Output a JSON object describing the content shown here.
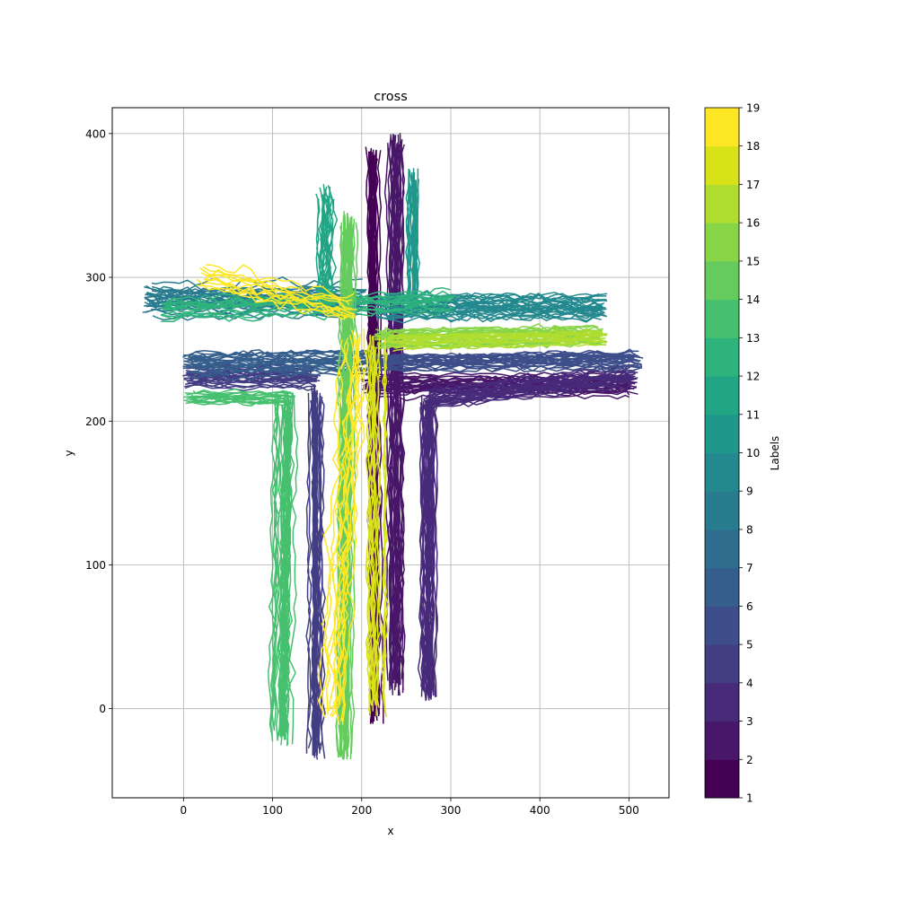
{
  "chart_data": {
    "type": "line",
    "title": "cross",
    "xlabel": "x",
    "ylabel": "y",
    "xlim": [
      -80,
      545
    ],
    "ylim": [
      -62,
      418
    ],
    "x_ticks": [
      0,
      100,
      200,
      300,
      400,
      500
    ],
    "y_ticks": [
      0,
      100,
      200,
      300,
      400
    ],
    "x_tick_labels": [
      "0",
      "100",
      "200",
      "300",
      "400",
      "500"
    ],
    "y_tick_labels": [
      "0",
      "100",
      "200",
      "300",
      "400"
    ],
    "grid": true,
    "colormap": "viridis",
    "colorbar": {
      "label": "Labels",
      "min": 1,
      "max": 19,
      "ticks": [
        1,
        2,
        3,
        4,
        5,
        6,
        7,
        8,
        9,
        10,
        11,
        12,
        13,
        14,
        15,
        16,
        17,
        18,
        19
      ],
      "tick_labels": [
        "1",
        "2",
        "3",
        "4",
        "5",
        "6",
        "7",
        "8",
        "9",
        "10",
        "11",
        "12",
        "13",
        "14",
        "15",
        "16",
        "17",
        "18",
        "19"
      ],
      "colors": [
        "#440154",
        "#481769",
        "#472a7a",
        "#433d84",
        "#3d4e8a",
        "#355e8d",
        "#2e6d8e",
        "#297b8e",
        "#23898e",
        "#1f978b",
        "#21a585",
        "#2eb37c",
        "#46c06f",
        "#65cb5e",
        "#89d548",
        "#b0dd2f",
        "#d8e219",
        "#fde725"
      ]
    },
    "series": [
      {
        "label_value": 1,
        "color": "#440154",
        "segment": [
          [
            215,
            -5
          ],
          [
            212,
            385
          ]
        ],
        "spread": 7,
        "count": 30
      },
      {
        "label_value": 2,
        "color": "#481769",
        "segment": [
          [
            238,
            15
          ],
          [
            238,
            395
          ]
        ],
        "spread": 8,
        "count": 25
      },
      {
        "label_value": 2,
        "color": "#481769",
        "segment": [
          [
            205,
            225
          ],
          [
            505,
            225
          ]
        ],
        "spread": 7,
        "count": 25
      },
      {
        "label_value": 3,
        "color": "#472a7a",
        "segment": [
          [
            275,
            10
          ],
          [
            275,
            215
          ]
        ],
        "spread": 8,
        "count": 30
      },
      {
        "label_value": 3,
        "color": "#472a7a",
        "segment": [
          [
            275,
            215
          ],
          [
            505,
            232
          ]
        ],
        "spread": 8,
        "count": 25
      },
      {
        "label_value": 4,
        "color": "#433d84",
        "segment": [
          [
            148,
            -30
          ],
          [
            148,
            220
          ]
        ],
        "spread": 8,
        "count": 25
      },
      {
        "label_value": 4,
        "color": "#433d84",
        "segment": [
          [
            5,
            230
          ],
          [
            148,
            230
          ]
        ],
        "spread": 8,
        "count": 25
      },
      {
        "label_value": 5,
        "color": "#3d4e8a",
        "segment": [
          [
            210,
            240
          ],
          [
            510,
            242
          ]
        ],
        "spread": 8,
        "count": 25
      },
      {
        "label_value": 6,
        "color": "#355e8d",
        "segment": [
          [
            5,
            240
          ],
          [
            210,
            242
          ]
        ],
        "spread": 8,
        "count": 25
      },
      {
        "label_value": 8,
        "color": "#297b8e",
        "segment": [
          [
            -40,
            285
          ],
          [
            200,
            285
          ]
        ],
        "spread": 10,
        "count": 30
      },
      {
        "label_value": 9,
        "color": "#23898e",
        "segment": [
          [
            220,
            280
          ],
          [
            470,
            280
          ]
        ],
        "spread": 10,
        "count": 30
      },
      {
        "label_value": 10,
        "color": "#1f978b",
        "segment": [
          [
            258,
            280
          ],
          [
            258,
            370
          ]
        ],
        "spread": 7,
        "count": 20
      },
      {
        "label_value": 11,
        "color": "#21a585",
        "segment": [
          [
            160,
            280
          ],
          [
            160,
            360
          ]
        ],
        "spread": 12,
        "count": 20
      },
      {
        "label_value": 12,
        "color": "#2eb37c",
        "segment": [
          [
            -20,
            280
          ],
          [
            300,
            285
          ]
        ],
        "spread": 10,
        "count": 15
      },
      {
        "label_value": 13,
        "color": "#46c06f",
        "segment": [
          [
            110,
            -20
          ],
          [
            115,
            215
          ]
        ],
        "spread": 12,
        "count": 30
      },
      {
        "label_value": 13,
        "color": "#46c06f",
        "segment": [
          [
            5,
            215
          ],
          [
            120,
            215
          ]
        ],
        "spread": 6,
        "count": 15
      },
      {
        "label_value": 14,
        "color": "#65cb5e",
        "segment": [
          [
            180,
            -30
          ],
          [
            185,
            340
          ]
        ],
        "spread": 8,
        "count": 30
      },
      {
        "label_value": 15,
        "color": "#89d548",
        "segment": [
          [
            220,
            258
          ],
          [
            470,
            260
          ]
        ],
        "spread": 7,
        "count": 25
      },
      {
        "label_value": 16,
        "color": "#b0dd2f",
        "segment": [
          [
            230,
            255
          ],
          [
            470,
            258
          ]
        ],
        "spread": 6,
        "count": 15
      },
      {
        "label_value": 18,
        "color": "#d8e219",
        "segment": [
          [
            215,
            0
          ],
          [
            215,
            255
          ]
        ],
        "spread": 10,
        "count": 15
      },
      {
        "label_value": 19,
        "color": "#fde725",
        "segment": [
          [
            170,
            -5
          ],
          [
            195,
            260
          ]
        ],
        "spread": 20,
        "count": 12
      },
      {
        "label_value": 19,
        "color": "#fde725",
        "segment": [
          [
            20,
            300
          ],
          [
            190,
            275
          ]
        ],
        "spread": 12,
        "count": 12
      }
    ]
  }
}
